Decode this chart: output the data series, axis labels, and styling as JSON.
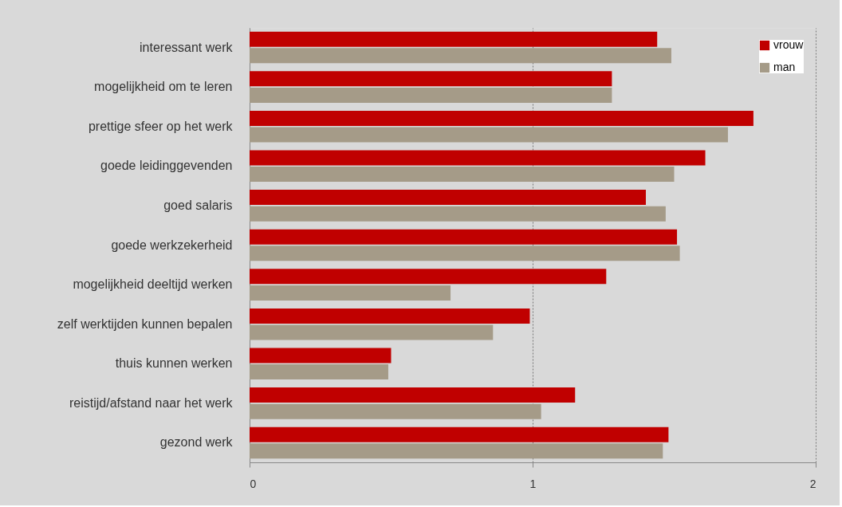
{
  "chart_data": {
    "type": "bar",
    "orientation": "horizontal",
    "categories": [
      "interessant werk",
      "mogelijkheid om te leren",
      "prettige sfeer op het werk",
      "goede leidinggevenden",
      "goed salaris",
      "goede werkzekerheid",
      "mogelijkheid deeltijd werken",
      "zelf werktijden kunnen bepalen",
      "thuis kunnen werken",
      "reistijd/afstand naar het werk",
      "gezond werk"
    ],
    "series": [
      {
        "name": "vrouw",
        "color": "#c00000",
        "values": [
          1.44,
          1.28,
          1.78,
          1.61,
          1.4,
          1.51,
          1.26,
          0.99,
          0.5,
          1.15,
          1.48
        ]
      },
      {
        "name": "man",
        "color": "#a59b88",
        "values": [
          1.49,
          1.28,
          1.69,
          1.5,
          1.47,
          1.52,
          0.71,
          0.86,
          0.49,
          1.03,
          1.46
        ]
      }
    ],
    "xlim": [
      0,
      2
    ],
    "xticks": [
      0,
      1,
      2
    ],
    "grid": "x",
    "legend": "top right"
  }
}
